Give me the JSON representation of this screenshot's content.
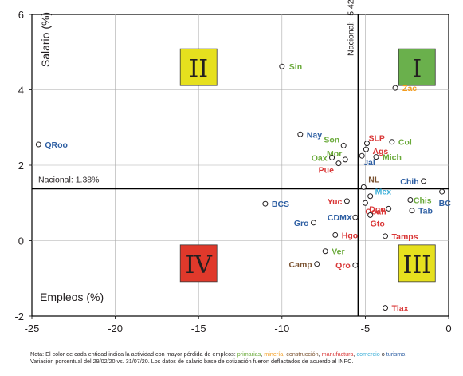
{
  "chart_data": {
    "type": "scatter",
    "xlim": [
      -25,
      0
    ],
    "ylim": [
      -2,
      6
    ],
    "x_ticks": [
      "-25",
      "-20",
      "-15",
      "-10",
      "-5",
      "0"
    ],
    "y_ticks": [
      "-2",
      "0",
      "2",
      "4",
      "6"
    ],
    "xlabel": "Empleos (%)",
    "ylabel": "Salario (%)",
    "grid": true,
    "national_employment": {
      "value": -5.42,
      "label": "Nacional: -5.42%"
    },
    "national_salary": {
      "value": 1.38,
      "label": "Nacional: 1.38%"
    },
    "quadrants": [
      {
        "label": "I",
        "color": "#6ab04c"
      },
      {
        "label": "II",
        "color": "#e6e01e"
      },
      {
        "label": "III",
        "color": "#e6e01e"
      },
      {
        "label": "IV",
        "color": "#e0392b"
      }
    ],
    "category_colors": {
      "primarias": "#6aaa3a",
      "mineria": "#f39c1e",
      "construccion": "#7a5230",
      "manufactura": "#d93636",
      "comercio": "#3aaed8",
      "turismo": "#2e5fa3"
    },
    "points": [
      {
        "name": "QRoo",
        "x": -24.6,
        "y": 2.55,
        "category": "turismo"
      },
      {
        "name": "Sin",
        "x": -10.0,
        "y": 4.62,
        "category": "primarias"
      },
      {
        "name": "Zac",
        "x": -3.2,
        "y": 4.05,
        "category": "mineria"
      },
      {
        "name": "Nay",
        "x": -8.9,
        "y": 2.82,
        "category": "turismo"
      },
      {
        "name": "SLP",
        "x": -4.9,
        "y": 2.58,
        "category": "manufactura"
      },
      {
        "name": "Col",
        "x": -3.4,
        "y": 2.62,
        "category": "primarias"
      },
      {
        "name": "Son",
        "x": -6.3,
        "y": 2.52,
        "category": "primarias"
      },
      {
        "name": "Ags",
        "x": -4.95,
        "y": 2.42,
        "category": "manufactura"
      },
      {
        "name": "Mor",
        "x": -6.2,
        "y": 2.15,
        "category": "primarias"
      },
      {
        "name": "Mich",
        "x": -4.35,
        "y": 2.22,
        "category": "primarias"
      },
      {
        "name": "Oax",
        "x": -7.0,
        "y": 2.2,
        "category": "primarias"
      },
      {
        "name": "Jal",
        "x": -5.2,
        "y": 2.25,
        "category": "turismo"
      },
      {
        "name": "Pue",
        "x": -6.6,
        "y": 2.05,
        "category": "manufactura"
      },
      {
        "name": "Chih",
        "x": -1.5,
        "y": 1.58,
        "category": "turismo"
      },
      {
        "name": "NL",
        "x": -5.1,
        "y": 1.42,
        "category": "construccion"
      },
      {
        "name": "BC",
        "x": -0.4,
        "y": 1.3,
        "category": "turismo"
      },
      {
        "name": "Mex",
        "x": -4.7,
        "y": 1.18,
        "category": "comercio"
      },
      {
        "name": "Chis",
        "x": -2.3,
        "y": 1.08,
        "category": "primarias"
      },
      {
        "name": "Yuc",
        "x": -6.1,
        "y": 1.05,
        "category": "manufactura"
      },
      {
        "name": "Coah",
        "x": -5.0,
        "y": 1.0,
        "category": "manufactura"
      },
      {
        "name": "BCS",
        "x": -11.0,
        "y": 0.98,
        "category": "turismo"
      },
      {
        "name": "Tab",
        "x": -2.2,
        "y": 0.8,
        "category": "turismo"
      },
      {
        "name": "Dgo",
        "x": -3.6,
        "y": 0.85,
        "category": "manufactura"
      },
      {
        "name": "CDMX",
        "x": -5.6,
        "y": 0.62,
        "category": "turismo"
      },
      {
        "name": "Gto",
        "x": -4.7,
        "y": 0.68,
        "category": "manufactura"
      },
      {
        "name": "Gro",
        "x": -8.1,
        "y": 0.48,
        "category": "turismo"
      },
      {
        "name": "Hgo",
        "x": -6.8,
        "y": 0.15,
        "category": "manufactura"
      },
      {
        "name": "Tamps",
        "x": -3.8,
        "y": 0.12,
        "category": "manufactura"
      },
      {
        "name": "Ver",
        "x": -7.4,
        "y": -0.28,
        "category": "primarias"
      },
      {
        "name": "Camp",
        "x": -7.9,
        "y": -0.62,
        "category": "construccion"
      },
      {
        "name": "Qro",
        "x": -5.6,
        "y": -0.65,
        "category": "manufactura"
      },
      {
        "name": "Tlax",
        "x": -3.8,
        "y": -1.78,
        "category": "manufactura"
      }
    ]
  },
  "note": {
    "line1_prefix": "Nota: El color de cada entidad indica la actividad con mayor pérdida de empleos: ",
    "primarias": "primarias",
    "mineria": "minería",
    "construccion": "construcción",
    "manufactura": "manufactura",
    "comercio": "comercio",
    "conj": " o ",
    "turismo": "turismo",
    "line2": "Variación porcentual del 29/02/20 vs. 31/07/20. Los datos de salario base de cotización fueron deflactados de acuerdo al INPC."
  }
}
